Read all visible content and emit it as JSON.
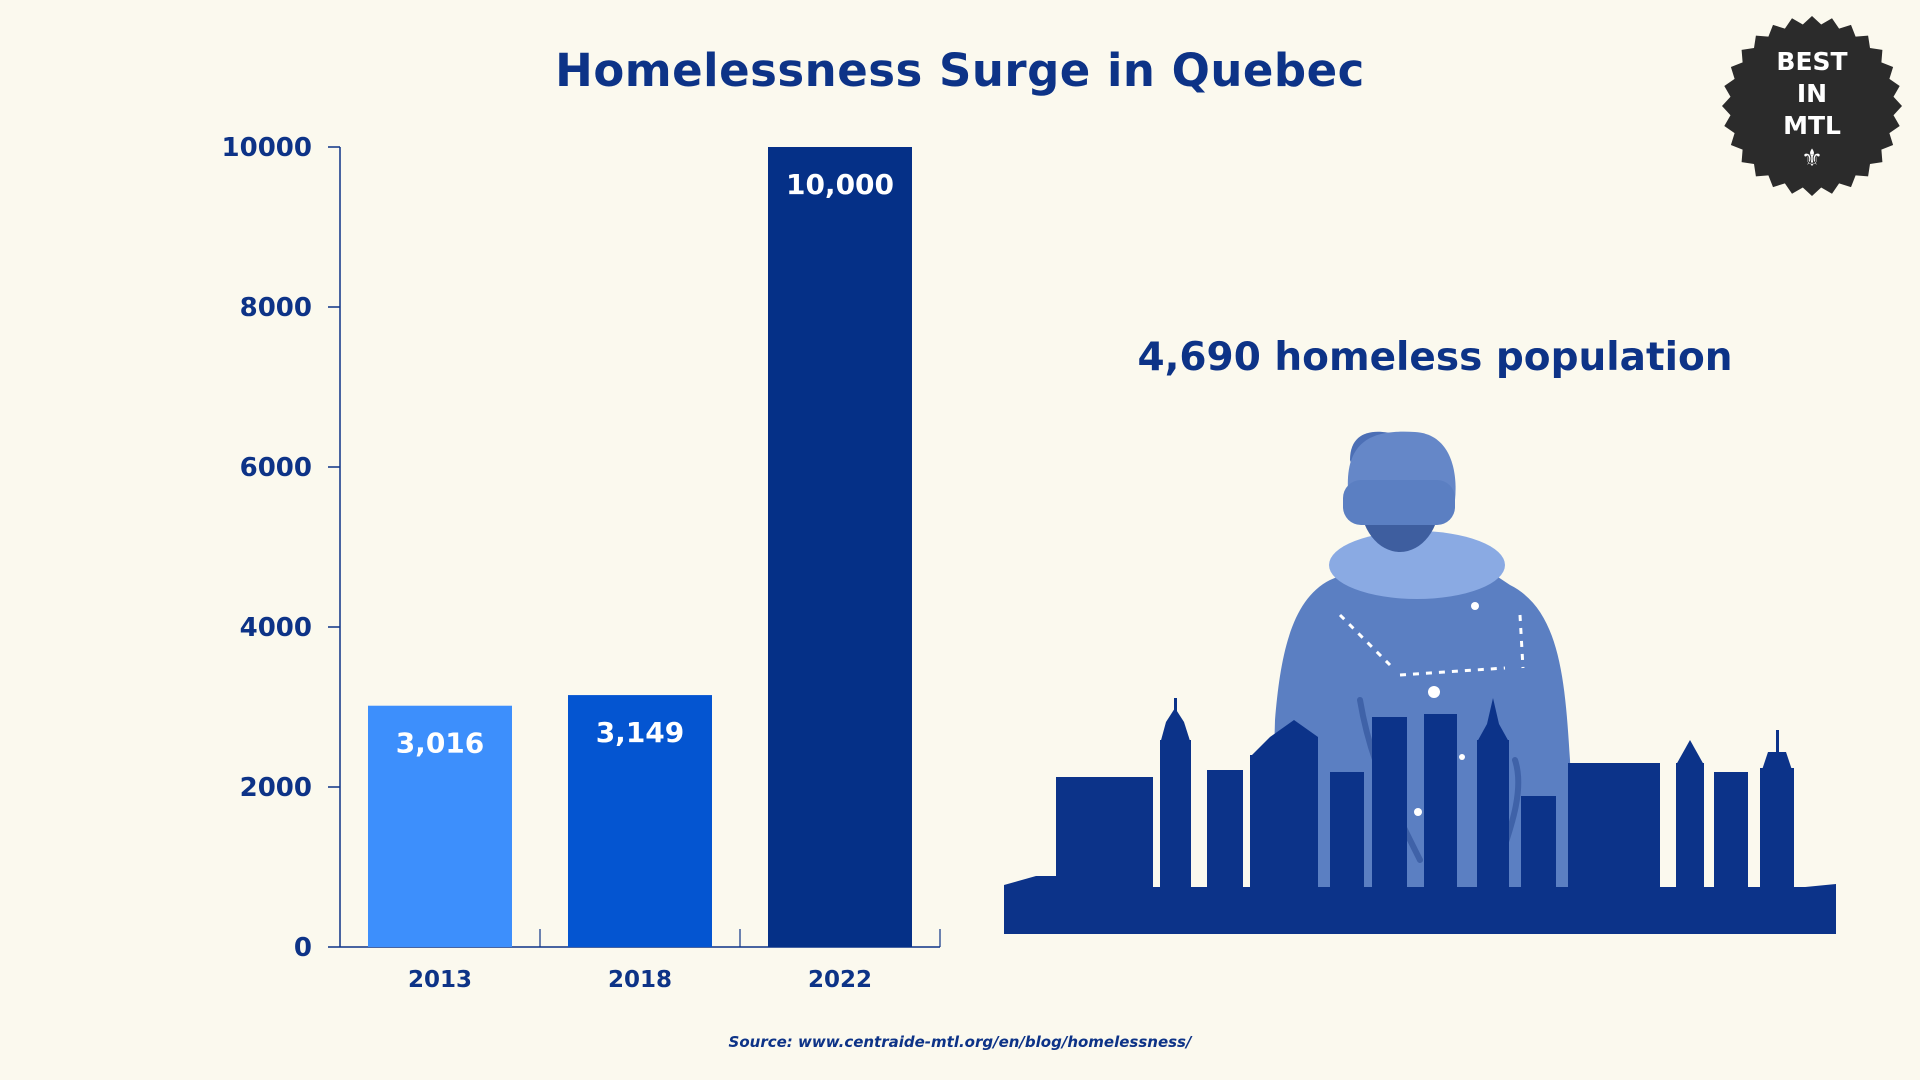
{
  "title": "Homelessness Surge in Quebec",
  "stat_text": "4,690 homeless population",
  "source": "Source: www.centraide-mtl.org/en/blog/homelessness/",
  "badge": {
    "line1": "BEST",
    "line2": "IN",
    "line3": "MTL",
    "icon": "fleur-de-lis-icon"
  },
  "colors": {
    "background": "#fbf9ee",
    "text": "#0d3387",
    "bar_2013": "#3d8ffc",
    "bar_2018": "#0455d1",
    "bar_2022": "#053087",
    "illustration": "#5b7fc2",
    "skyline": "#0c3389",
    "badge": "#2b2b2b"
  },
  "chart_data": {
    "type": "bar",
    "categories": [
      "2013",
      "2018",
      "2022"
    ],
    "values": [
      3016,
      3149,
      10000
    ],
    "data_labels": [
      "3,016",
      "3,149",
      "10,000"
    ],
    "title": "Homelessness Surge in Quebec",
    "xlabel": "",
    "ylabel": "",
    "ylim": [
      0,
      10000
    ],
    "yticks": [
      "0",
      "2000",
      "4000",
      "6000",
      "8000",
      "10000"
    ],
    "grid": false,
    "legend": "none"
  }
}
